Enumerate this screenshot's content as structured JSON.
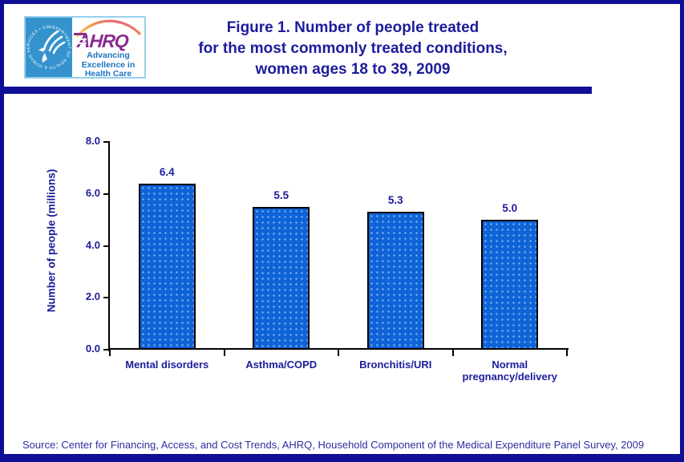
{
  "page": {
    "title_lines": [
      "Figure 1. Number of people treated",
      "for the most commonly treated conditions,",
      "women ages 18 to 39, 2009"
    ],
    "source": "Source: Center for Financing, Access, and Cost Trends, AHRQ, Household Component of the Medical Expenditure Panel Survey, 2009"
  },
  "logo": {
    "hhs_seal_text": "DEPARTMENT OF HEALTH & HUMAN SERVICES • USA",
    "ahrq_acronym": "AHRQ",
    "tagline_lines": [
      "Advancing",
      "Excellence in",
      "Health Care"
    ]
  },
  "colors": {
    "navy": "#0f0f96",
    "title_text": "#1c1c9c",
    "bar_fill": "#0f63d6",
    "bar_border": "#000000",
    "axis": "#000000",
    "hhs_blue": "#3493cd",
    "ahrq_purple": "#8a2b8f",
    "tagline_blue": "#1b75c0",
    "source_text": "#2e2e9e"
  },
  "chart_data": {
    "type": "bar",
    "title": "Figure 1. Number of people treated for the most commonly treated conditions, women ages 18 to 39, 2009",
    "categories": [
      "Mental disorders",
      "Asthma/COPD",
      "Bronchitis/URI",
      "Normal pregnancy/delivery"
    ],
    "values": [
      6.4,
      5.5,
      5.3,
      5.0
    ],
    "value_labels": [
      "6.4",
      "5.5",
      "5.3",
      "5.0"
    ],
    "xlabel": "",
    "ylabel": "Number of people (millions)",
    "ylim": [
      0,
      8
    ],
    "ytick_labels": [
      "0.0",
      "2.0",
      "4.0",
      "6.0",
      "8.0"
    ],
    "grid": false,
    "legend": false,
    "bar_texture": "dotted"
  }
}
